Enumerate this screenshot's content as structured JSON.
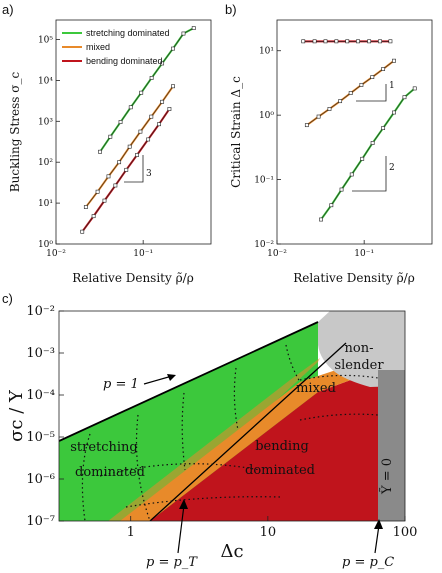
{
  "colors": {
    "stretching": "#3cc83c",
    "mixed": "#e88a2a",
    "bending": "#c0141c",
    "nonslender": "#c8c8c8",
    "zero": "#8a8a8a",
    "fit": "#222222"
  },
  "chart_data": [
    {
      "panel": "a)",
      "type": "line",
      "xlabel": "Relative Density ρ̃/ρ",
      "ylabel": "Buckling Stress σ_c",
      "xscale": "log",
      "yscale": "log",
      "xlim": [
        0.01,
        0.6
      ],
      "ylim": [
        1,
        300000
      ],
      "x_ticks": [
        {
          "v": 0.01,
          "label": "10⁻²"
        },
        {
          "v": 0.1,
          "label": "10⁻¹"
        }
      ],
      "y_ticks": [
        {
          "v": 1,
          "label": "10⁰"
        },
        {
          "v": 10,
          "label": "10¹"
        },
        {
          "v": 100,
          "label": "10²"
        },
        {
          "v": 1000,
          "label": "10³"
        },
        {
          "v": 10000,
          "label": "10⁴"
        },
        {
          "v": 100000,
          "label": "10⁵"
        }
      ],
      "legend": "top-left",
      "slope_annotation": {
        "text": "3",
        "x": 0.1,
        "y": 30
      },
      "series": [
        {
          "name": "stretching dominated",
          "key": "stretching",
          "x": [
            0.032,
            0.042,
            0.055,
            0.072,
            0.095,
            0.125,
            0.165,
            0.22,
            0.29,
            0.38
          ],
          "y": [
            180,
            420,
            960,
            2200,
            5000,
            11500,
            26000,
            60000,
            140000,
            190000
          ]
        },
        {
          "name": "mixed",
          "key": "mixed",
          "x": [
            0.022,
            0.03,
            0.04,
            0.053,
            0.07,
            0.093,
            0.124,
            0.165,
            0.22
          ],
          "y": [
            8,
            19,
            45,
            100,
            240,
            560,
            1300,
            3000,
            7200
          ]
        },
        {
          "name": "bending dominated",
          "key": "bending",
          "x": [
            0.02,
            0.027,
            0.036,
            0.048,
            0.064,
            0.085,
            0.114,
            0.152,
            0.2
          ],
          "y": [
            2,
            4.8,
            11.5,
            27,
            65,
            150,
            360,
            850,
            2000
          ]
        }
      ]
    },
    {
      "panel": "b)",
      "type": "line",
      "xlabel": "Relative Density ρ̃/ρ",
      "ylabel": "Critical Strain Δ_c",
      "xscale": "log",
      "yscale": "log",
      "xlim": [
        0.01,
        0.6
      ],
      "ylim": [
        0.01,
        30
      ],
      "x_ticks": [
        {
          "v": 0.01,
          "label": "10⁻²"
        },
        {
          "v": 0.1,
          "label": "10⁻¹"
        }
      ],
      "y_ticks": [
        {
          "v": 0.01,
          "label": "10⁻²"
        },
        {
          "v": 0.1,
          "label": "10⁻¹"
        },
        {
          "v": 1,
          "label": "10⁰"
        },
        {
          "v": 10,
          "label": "10¹"
        }
      ],
      "slope_annotations": [
        {
          "text": "1",
          "x": 0.26,
          "y": 1.35
        },
        {
          "text": "2",
          "x": 0.26,
          "y": 0.22
        }
      ],
      "series": [
        {
          "key": "bending",
          "x": [
            0.02,
            0.027,
            0.036,
            0.048,
            0.064,
            0.085,
            0.114,
            0.152,
            0.2
          ],
          "y": [
            14,
            14,
            14,
            14,
            14,
            14,
            14,
            14,
            14
          ]
        },
        {
          "key": "mixed",
          "x": [
            0.022,
            0.03,
            0.04,
            0.053,
            0.07,
            0.093,
            0.124,
            0.165,
            0.22
          ],
          "y": [
            0.7,
            0.95,
            1.25,
            1.65,
            2.2,
            2.95,
            3.9,
            5.2,
            7
          ]
        },
        {
          "key": "stretching",
          "x": [
            0.032,
            0.042,
            0.055,
            0.072,
            0.095,
            0.125,
            0.165,
            0.22,
            0.29,
            0.38
          ],
          "y": [
            0.024,
            0.04,
            0.07,
            0.12,
            0.21,
            0.37,
            0.63,
            1.1,
            1.9,
            2.6
          ]
        }
      ]
    },
    {
      "panel": "c)",
      "type": "area",
      "xlabel": "Δc",
      "ylabel": "σc / Y",
      "xscale": "log",
      "yscale": "log",
      "xlim": [
        0.3,
        100
      ],
      "ylim": [
        1e-07,
        0.01
      ],
      "x_ticks": [
        {
          "v": 1,
          "label": "1"
        },
        {
          "v": 10,
          "label": "10"
        },
        {
          "v": 100,
          "label": "100"
        }
      ],
      "y_ticks": [
        {
          "v": 1e-07,
          "label": "10⁻⁷"
        },
        {
          "v": 1e-06,
          "label": "10⁻⁶"
        },
        {
          "v": 1e-05,
          "label": "10⁻⁵"
        },
        {
          "v": 0.0001,
          "label": "10⁻⁴"
        },
        {
          "v": 0.001,
          "label": "10⁻³"
        },
        {
          "v": 0.01,
          "label": "10⁻²"
        }
      ],
      "regions": {
        "stretching": "stretching dominated",
        "bending": "bending dominated",
        "mixed": "mixed",
        "nonslender": "non- slender",
        "zero": "Ỹ = 0"
      },
      "annotations": {
        "p_one": "p = 1",
        "p_T": "p = p_T",
        "p_C": "p = p_C"
      }
    }
  ]
}
